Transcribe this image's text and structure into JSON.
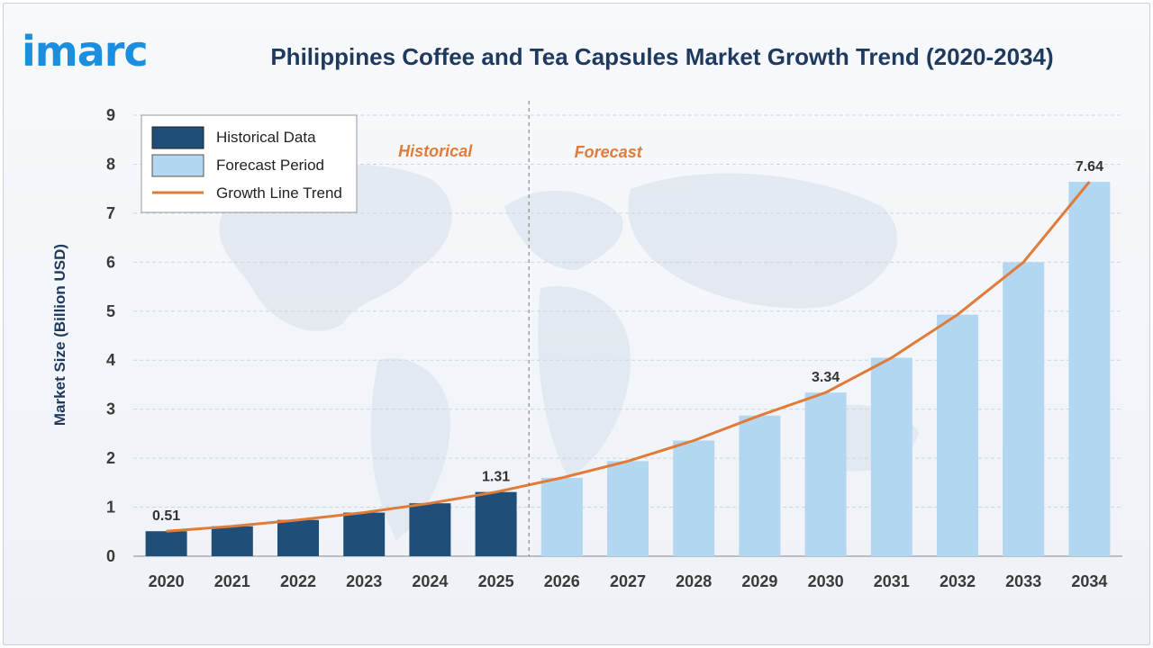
{
  "brand": {
    "logo_text": "imarc",
    "accent": "#1a8fe0"
  },
  "chart_data": {
    "type": "bar",
    "title": "Philippines Coffee and Tea Capsules Market Growth Trend (2020-2034)",
    "xlabel": "",
    "ylabel": "Market Size (Billion USD)",
    "ylim": [
      0,
      9
    ],
    "yticks": [
      0,
      1,
      2,
      3,
      4,
      5,
      6,
      7,
      8,
      9
    ],
    "grid": true,
    "legend_position": "top-left",
    "categories": [
      "2020",
      "2021",
      "2022",
      "2023",
      "2024",
      "2025",
      "2026",
      "2027",
      "2028",
      "2029",
      "2030",
      "2031",
      "2032",
      "2033",
      "2034"
    ],
    "series": [
      {
        "name": "Historical Data",
        "color": "#1f4e79",
        "values": [
          0.51,
          0.61,
          0.74,
          0.89,
          1.08,
          1.31,
          null,
          null,
          null,
          null,
          null,
          null,
          null,
          null,
          null
        ]
      },
      {
        "name": "Forecast Period",
        "color": "#b3d7f0",
        "values": [
          null,
          null,
          null,
          null,
          null,
          null,
          1.6,
          1.94,
          2.36,
          2.87,
          3.34,
          4.05,
          4.93,
          6.0,
          7.64
        ]
      },
      {
        "name": "Growth Line Trend",
        "type": "line",
        "color": "#e07b3a",
        "values": [
          0.51,
          0.61,
          0.74,
          0.89,
          1.08,
          1.31,
          1.6,
          1.94,
          2.36,
          2.87,
          3.34,
          4.05,
          4.93,
          6.0,
          7.64
        ]
      }
    ],
    "data_labels": [
      {
        "category": "2020",
        "text": "0.51"
      },
      {
        "category": "2025",
        "text": "1.31"
      },
      {
        "category": "2030",
        "text": "3.34"
      },
      {
        "category": "2034",
        "text": "7.64"
      }
    ],
    "annotations": [
      {
        "text": "Historical",
        "side": "left"
      },
      {
        "text": "Forecast",
        "side": "right"
      }
    ],
    "divider_after_category": "2025"
  }
}
